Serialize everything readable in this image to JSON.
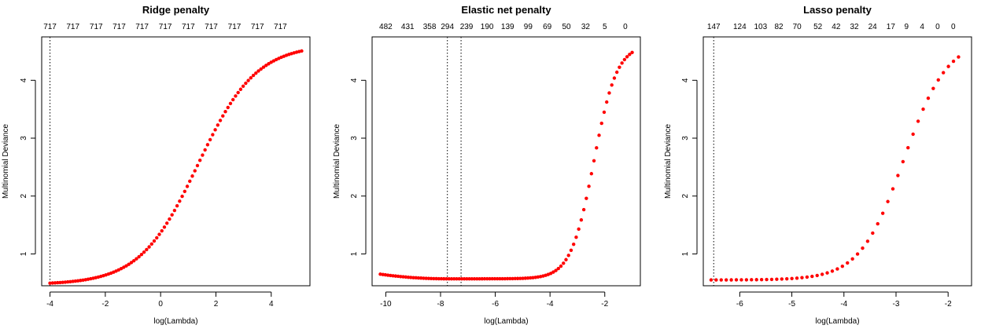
{
  "chart_data": [
    {
      "type": "scatter",
      "title": "Ridge penalty",
      "xlabel": "log(Lambda)",
      "ylabel": "Multinomial Deviance",
      "xlim": [
        -4.3,
        5.4
      ],
      "ylim": [
        0.45,
        4.75
      ],
      "x_ticks": [
        -4,
        -2,
        0,
        2,
        4
      ],
      "y_ticks": [
        1,
        2,
        3,
        4
      ],
      "top_ticks": {
        "values": [
          -4.0,
          -3.17,
          -2.33,
          -1.5,
          -0.67,
          0.17,
          1.0,
          1.83,
          2.67,
          3.5,
          4.33
        ],
        "labels": [
          "717",
          "717",
          "717",
          "717",
          "717",
          "717",
          "717",
          "717",
          "717",
          "717",
          "717"
        ]
      },
      "vlines": [
        -4.0
      ],
      "grid": false,
      "point_color": "#ff0000",
      "curve": {
        "kind": "sigmoid",
        "x_start": -4.0,
        "x_end": 5.1,
        "n": 100,
        "y_low": 0.47,
        "y_high": 4.62,
        "center": 1.35,
        "scale": 1.05
      }
    },
    {
      "type": "scatter",
      "title": "Elastic net penalty",
      "xlabel": "log(Lambda)",
      "ylabel": "Multinomial Deviance",
      "xlim": [
        -10.5,
        -0.7
      ],
      "ylim": [
        0.45,
        4.75
      ],
      "x_ticks": [
        -10,
        -8,
        -6,
        -4,
        -2
      ],
      "y_ticks": [
        1,
        2,
        3,
        4
      ],
      "top_ticks": {
        "values": [
          -10.0,
          -9.2,
          -8.4,
          -7.75,
          -7.05,
          -6.3,
          -5.55,
          -4.8,
          -4.1,
          -3.4,
          -2.7,
          -2.0,
          -1.25
        ],
        "labels": [
          "482",
          "431",
          "358",
          "294",
          "239",
          "190",
          "139",
          "99",
          "69",
          "50",
          "32",
          "5",
          "0"
        ]
      },
      "vlines": [
        -7.75,
        -7.25
      ],
      "grid": false,
      "point_color": "#ff0000",
      "curve": {
        "kind": "basin",
        "x_start": -10.2,
        "x_end": -1.0,
        "n": 100,
        "y_min": 0.57,
        "x_min": -7.75,
        "y_left": 0.65,
        "y_high": 4.62,
        "center": -2.4,
        "scale": 0.42
      }
    },
    {
      "type": "scatter",
      "title": "Lasso penalty",
      "xlabel": "log(Lambda)",
      "ylabel": "Multinomial Deviance",
      "xlim": [
        -6.7,
        -1.55
      ],
      "ylim": [
        0.45,
        4.75
      ],
      "x_ticks": [
        -6,
        -5,
        -4,
        -3,
        -2
      ],
      "y_ticks": [
        1,
        2,
        3,
        4
      ],
      "top_ticks": {
        "values": [
          -6.5,
          -6.0,
          -5.6,
          -5.25,
          -4.9,
          -4.5,
          -4.15,
          -3.8,
          -3.45,
          -3.1,
          -2.8,
          -2.5,
          -2.2,
          -1.9
        ],
        "labels": [
          "147",
          "124",
          "103",
          "82",
          "70",
          "52",
          "42",
          "32",
          "24",
          "17",
          "9",
          "4",
          "0",
          "0"
        ]
      },
      "vlines": [
        -6.5
      ],
      "grid": false,
      "point_color": "#ff0000",
      "curve": {
        "kind": "sigmoid",
        "x_start": -6.55,
        "x_end": -1.8,
        "n": 50,
        "y_low": 0.55,
        "y_high": 4.72,
        "center": -2.85,
        "scale": 0.42
      }
    }
  ]
}
